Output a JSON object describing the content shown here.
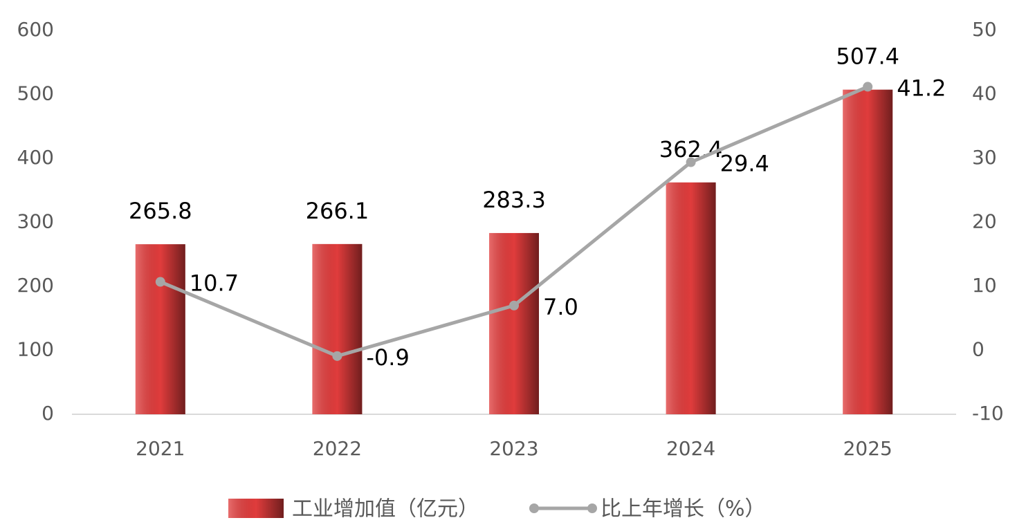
{
  "chart_data": {
    "type": "bar",
    "categories": [
      "2021",
      "2022",
      "2023",
      "2024",
      "2025"
    ],
    "series": [
      {
        "name": "工业增加值（亿元）",
        "type": "bar",
        "color": "#e03c3c",
        "values": [
          265.8,
          266.1,
          283.3,
          362.4,
          507.4
        ]
      },
      {
        "name": "比上年增长（%）",
        "type": "line",
        "axis": "y2",
        "color": "#a6a6a6",
        "values": [
          10.7,
          -0.9,
          7.0,
          29.4,
          41.2
        ],
        "value_labels": [
          "10.7",
          "-0.9",
          "7.0",
          "29.4",
          "41.2"
        ]
      }
    ],
    "ylim": [
      0,
      600
    ],
    "yticks": [
      0,
      100,
      200,
      300,
      400,
      500,
      600
    ],
    "y2lim": [
      -10,
      50
    ],
    "y2ticks": [
      -10,
      0,
      10,
      20,
      30,
      40,
      50
    ],
    "grid": false,
    "legend": "bottom"
  }
}
